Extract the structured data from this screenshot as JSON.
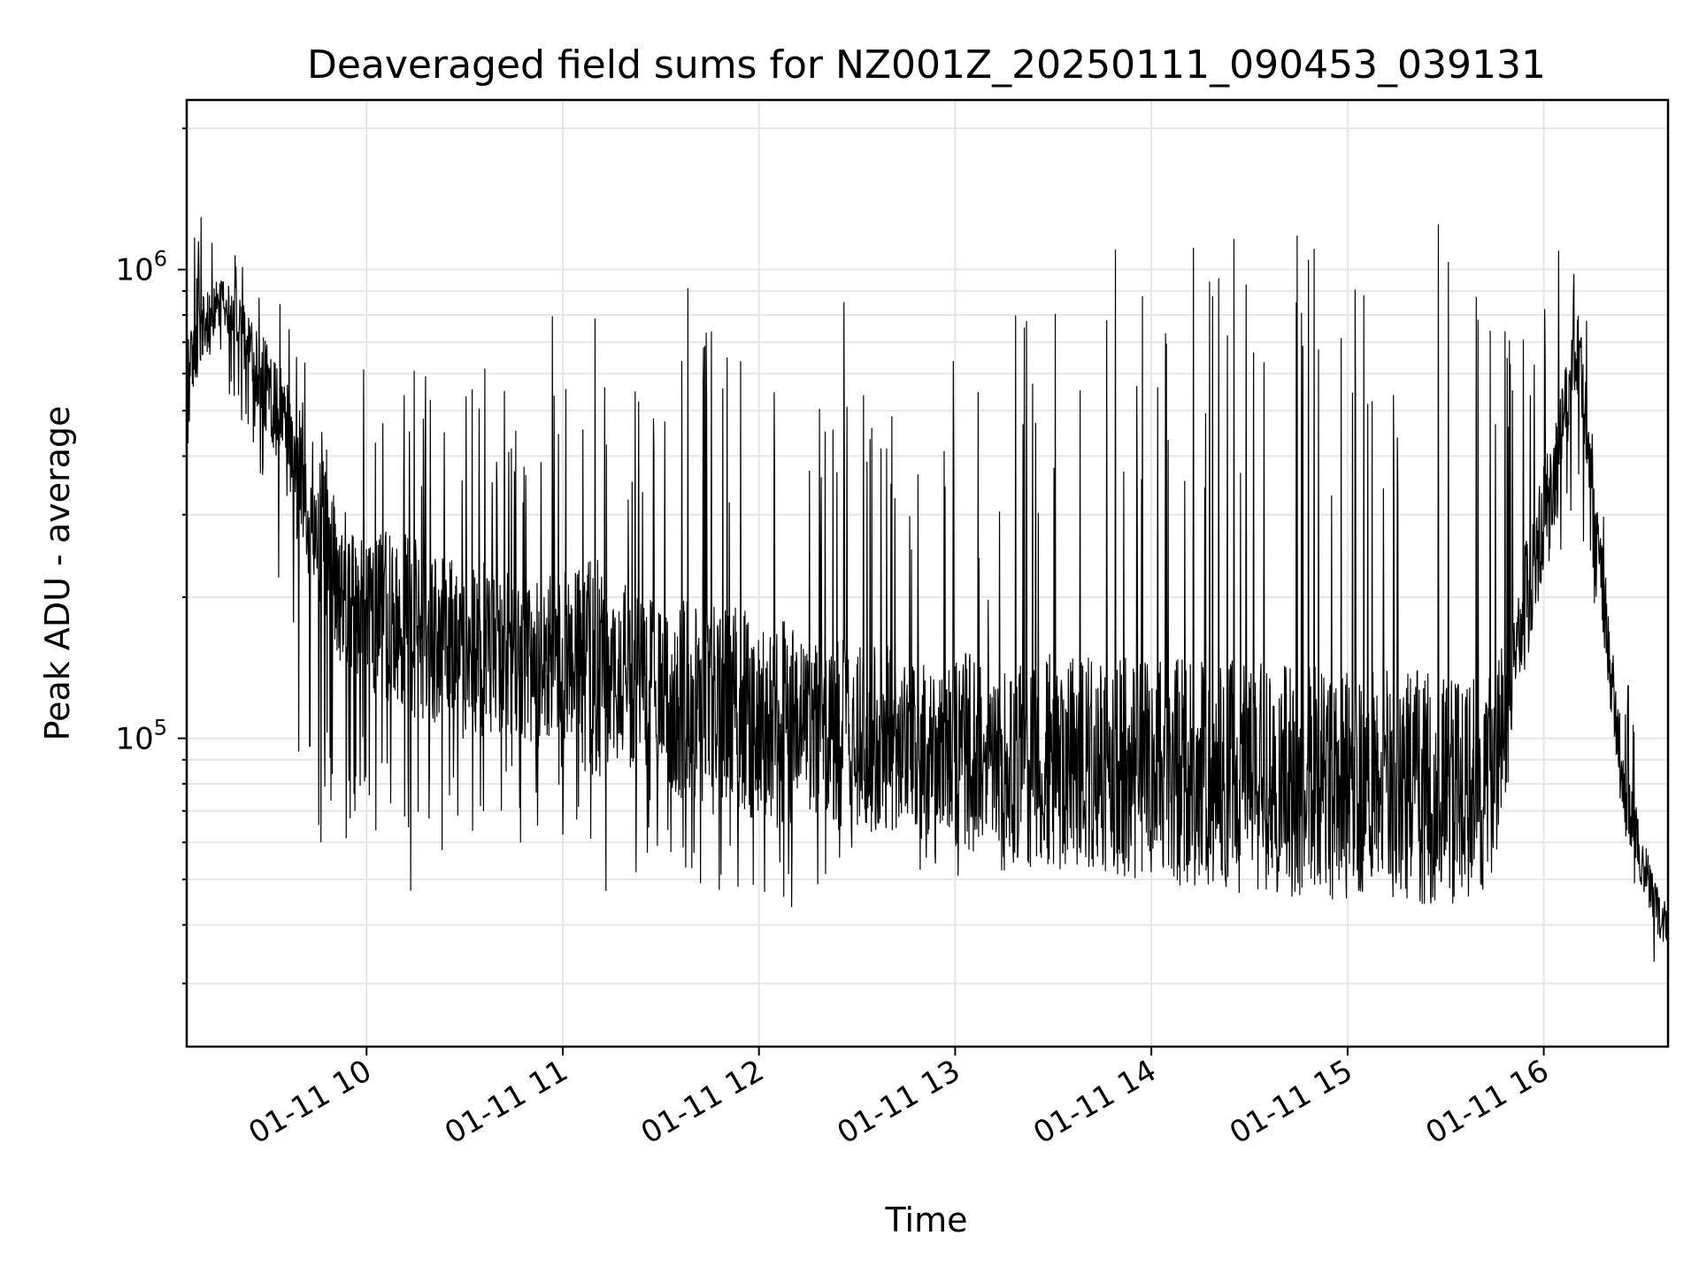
{
  "chart_data": {
    "type": "line",
    "title": "Deaveraged field sums for NZ001Z_20250111_090453_039131",
    "xlabel": "Time",
    "ylabel": "Peak ADU - average",
    "x_scale": "time",
    "y_scale": "log",
    "xlim": [
      "2025-01-11 09:05",
      "2025-01-11 16:38"
    ],
    "ylim": [
      22000,
      2300000
    ],
    "x_ticks": [
      "2025-01-11 10:00",
      "2025-01-11 11:00",
      "2025-01-11 12:00",
      "2025-01-11 13:00",
      "2025-01-11 14:00",
      "2025-01-11 15:00",
      "2025-01-11 16:00"
    ],
    "x_tick_labels": [
      "01-11 10",
      "01-11 11",
      "01-11 12",
      "01-11 13",
      "01-11 14",
      "01-11 15",
      "01-11 16"
    ],
    "y_ticks": [
      100000,
      1000000
    ],
    "y_tick_labels": [
      {
        "base": "10",
        "exp": "5"
      },
      {
        "base": "10",
        "exp": "6"
      }
    ],
    "grid": true,
    "series": [
      {
        "color": "#000000",
        "x": [
          "09:05",
          "09:10",
          "09:15",
          "09:20",
          "09:25",
          "09:30",
          "09:35",
          "09:40",
          "09:45",
          "09:50",
          "09:55",
          "10:00",
          "10:05",
          "10:10",
          "10:15",
          "10:20",
          "10:25",
          "10:30",
          "10:35",
          "10:40",
          "10:45",
          "10:50",
          "10:55",
          "11:00",
          "11:05",
          "11:10",
          "11:15",
          "11:20",
          "11:25",
          "11:30",
          "11:35",
          "11:40",
          "11:45",
          "11:50",
          "11:55",
          "12:00",
          "12:05",
          "12:10",
          "12:15",
          "12:20",
          "12:25",
          "12:30",
          "12:35",
          "12:40",
          "12:45",
          "12:50",
          "12:55",
          "13:00",
          "13:05",
          "13:10",
          "13:15",
          "13:20",
          "13:25",
          "13:30",
          "13:35",
          "13:40",
          "13:45",
          "13:50",
          "13:55",
          "14:00",
          "14:05",
          "14:10",
          "14:15",
          "14:20",
          "14:25",
          "14:30",
          "14:35",
          "14:40",
          "14:45",
          "14:50",
          "14:55",
          "15:00",
          "15:05",
          "15:10",
          "15:15",
          "15:20",
          "15:25",
          "15:30",
          "15:35",
          "15:40",
          "15:45",
          "15:50",
          "15:55",
          "16:00",
          "16:05",
          "16:10",
          "16:15",
          "16:20",
          "16:25",
          "16:30",
          "16:35",
          "16:38"
        ],
        "y_typical": [
          600000,
          750000,
          850000,
          800000,
          650000,
          550000,
          450000,
          350000,
          280000,
          230000,
          200000,
          190000,
          180000,
          175000,
          170000,
          165000,
          160000,
          160000,
          155000,
          155000,
          150000,
          150000,
          150000,
          150000,
          145000,
          140000,
          140000,
          135000,
          130000,
          130000,
          125000,
          120000,
          120000,
          118000,
          115000,
          112000,
          110000,
          108000,
          105000,
          105000,
          103000,
          100000,
          100000,
          98000,
          97000,
          96000,
          95000,
          94000,
          93000,
          92000,
          92000,
          91000,
          90000,
          90000,
          89000,
          88000,
          88000,
          87000,
          86000,
          86000,
          85000,
          84000,
          84000,
          83000,
          83000,
          82000,
          82000,
          81000,
          81000,
          80000,
          80000,
          80000,
          80000,
          79000,
          79000,
          79000,
          78000,
          78000,
          78000,
          78000,
          85000,
          130000,
          200000,
          300000,
          420000,
          700000,
          350000,
          150000,
          75000,
          55000,
          42000,
          38000
        ],
        "y_peaks": [
          1000000,
          1400000,
          1200000,
          1100000,
          1200000,
          1000000,
          800000,
          700000,
          500000,
          600000,
          500000,
          700000,
          600000,
          650000,
          700000,
          600000,
          500000,
          800000,
          700000,
          600000,
          500000,
          700000,
          900000,
          700000,
          800000,
          1200000,
          600000,
          650000,
          600000,
          700000,
          1000000,
          900000,
          800000,
          700000,
          800000,
          800000,
          650000,
          1000000,
          500000,
          600000,
          900000,
          700000,
          800000,
          1100000,
          500000,
          600000,
          400000,
          700000,
          800000,
          400000,
          500000,
          1100000,
          1000000,
          1100000,
          1000000,
          1050000,
          1100000,
          1200000,
          1100000,
          1000000,
          1200000,
          1250000,
          1250000,
          1300000,
          1300000,
          1350000,
          1300000,
          1350000,
          1300000,
          1300000,
          1300000,
          1350000,
          1250000,
          1300000,
          1300000,
          1350000,
          1300000,
          1350000,
          1350000,
          1350000,
          1300000,
          1000000,
          1000000,
          900000,
          1200000,
          1200000,
          700000,
          300000,
          150000,
          90000,
          60000,
          45000
        ],
        "y_dips": [
          400000,
          550000,
          600000,
          500000,
          420000,
          250000,
          160000,
          80000,
          60000,
          58000,
          55000,
          60000,
          48000,
          45000,
          48000,
          50000,
          55000,
          48000,
          52000,
          58000,
          55000,
          62000,
          60000,
          58000,
          55000,
          50000,
          45000,
          48000,
          55000,
          60000,
          52000,
          48000,
          50000,
          45000,
          42000,
          40000,
          45000,
          42000,
          50000,
          48000,
          55000,
          52000,
          60000,
          58000,
          55000,
          50000,
          52000,
          48000,
          44000,
          46000,
          50000,
          52000,
          50000,
          50000,
          48000,
          52000,
          52000,
          50000,
          48000,
          52000,
          50000,
          48000,
          50000,
          52000,
          50000,
          48000,
          50000,
          52000,
          50000,
          48000,
          50000,
          52000,
          52000,
          48000,
          50000,
          48000,
          50000,
          52000,
          55000,
          60000,
          80000,
          110000,
          150000,
          200000,
          250000,
          300000,
          200000,
          90000,
          50000,
          40000,
          30000,
          30000
        ]
      }
    ]
  }
}
